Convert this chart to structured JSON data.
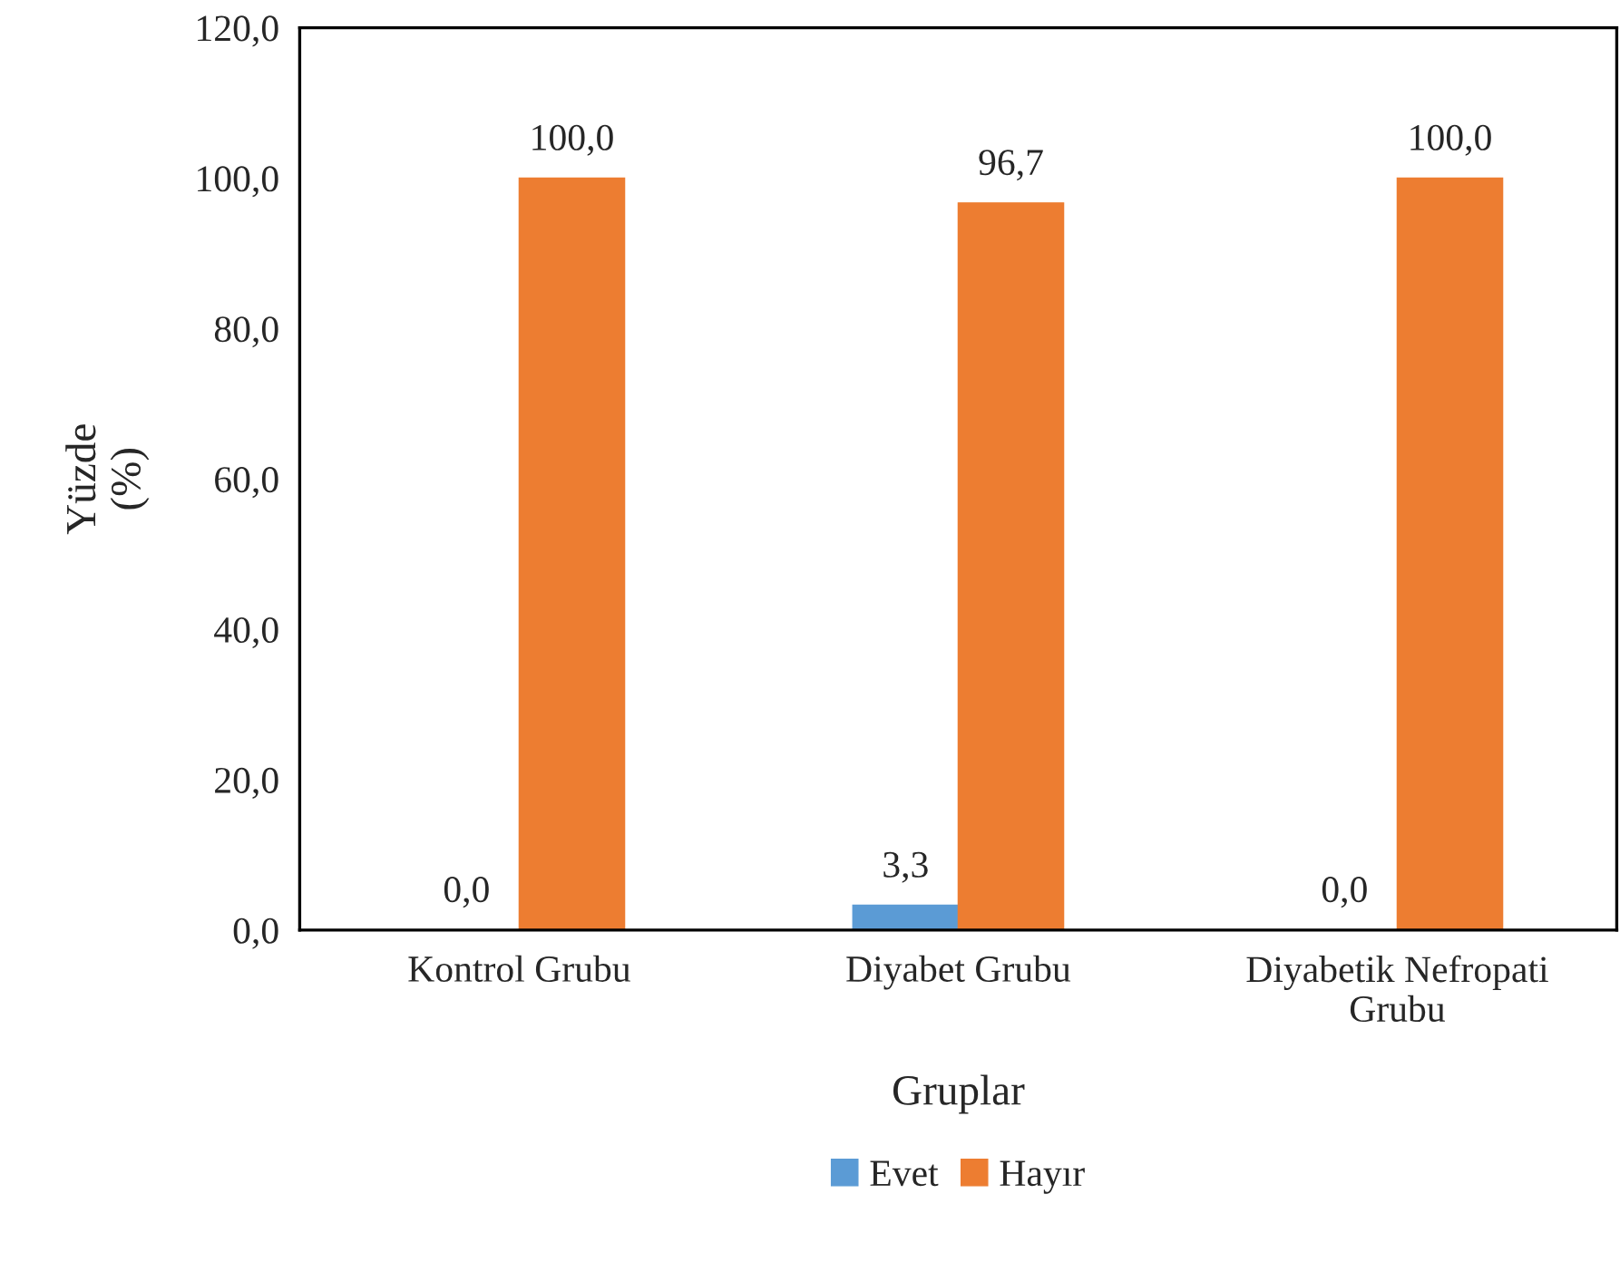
{
  "chart_data": {
    "type": "bar",
    "xlabel": "Gruplar",
    "ylabel": "Yüzde\n(%)",
    "categories": [
      "Kontrol Grubu",
      "Diyabet Grubu",
      "Diyabetik Nefropati\nGrubu"
    ],
    "series": [
      {
        "name": "Evet",
        "color": "#5b9bd5",
        "values": [
          0.0,
          3.3,
          0.0
        ],
        "value_labels": [
          "0,0",
          "3,3",
          "0,0"
        ]
      },
      {
        "name": "Hayır",
        "color": "#ed7d31",
        "values": [
          100.0,
          96.7,
          100.0
        ],
        "value_labels": [
          "100,0",
          "96,7",
          "100,0"
        ]
      }
    ],
    "ylim": [
      0,
      120
    ],
    "yticks": [
      {
        "value": 0,
        "label": "0,0"
      },
      {
        "value": 20,
        "label": "20,0"
      },
      {
        "value": 40,
        "label": "40,0"
      },
      {
        "value": 60,
        "label": "60,0"
      },
      {
        "value": 80,
        "label": "80,0"
      },
      {
        "value": 100,
        "label": "100,0"
      },
      {
        "value": 120,
        "label": "120,0"
      }
    ],
    "grid": false,
    "legend": "bottom"
  }
}
